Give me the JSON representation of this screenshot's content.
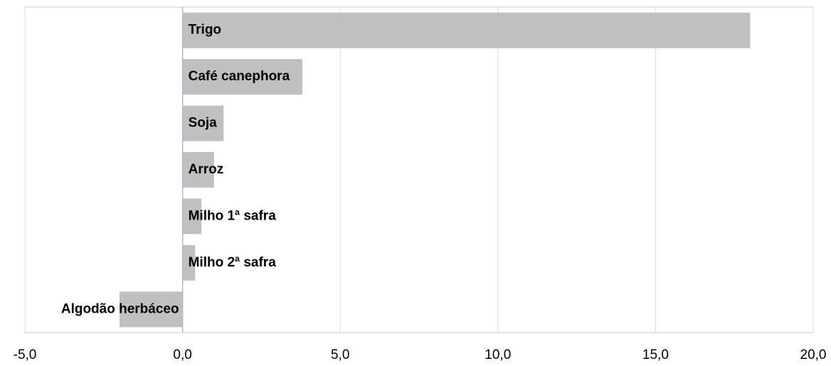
{
  "chart_data": {
    "type": "barh",
    "categories": [
      "Trigo",
      "Café canephora",
      "Soja",
      "Arroz",
      "Milho 1ª safra",
      "Milho 2ª safra",
      "Algodão herbáceo"
    ],
    "values": [
      18.0,
      3.8,
      1.3,
      1.0,
      0.6,
      0.4,
      -2.0
    ],
    "color": "#c0c0c0",
    "xlim": [
      -5,
      20
    ],
    "xticks": [
      {
        "value": -5,
        "label": "-5,0"
      },
      {
        "value": 0,
        "label": "0,0"
      },
      {
        "value": 5,
        "label": "5,0"
      },
      {
        "value": 10,
        "label": "10,0"
      },
      {
        "value": 15,
        "label": "15,0"
      },
      {
        "value": 20,
        "label": "20,0"
      }
    ],
    "grid": true
  }
}
